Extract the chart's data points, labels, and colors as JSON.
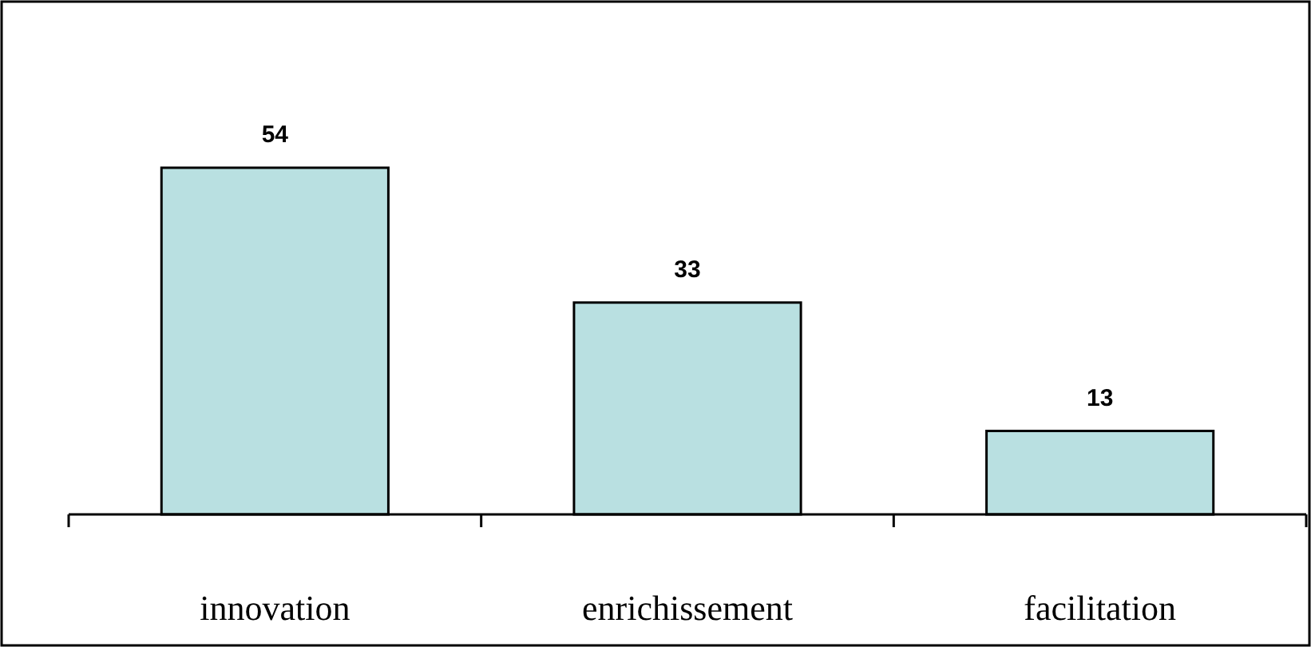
{
  "chart_data": {
    "type": "bar",
    "categories": [
      "innovation",
      "enrichissement",
      "facilitation"
    ],
    "values": [
      54,
      33,
      13
    ],
    "color": "#b9e0e1",
    "data_labels": true
  }
}
